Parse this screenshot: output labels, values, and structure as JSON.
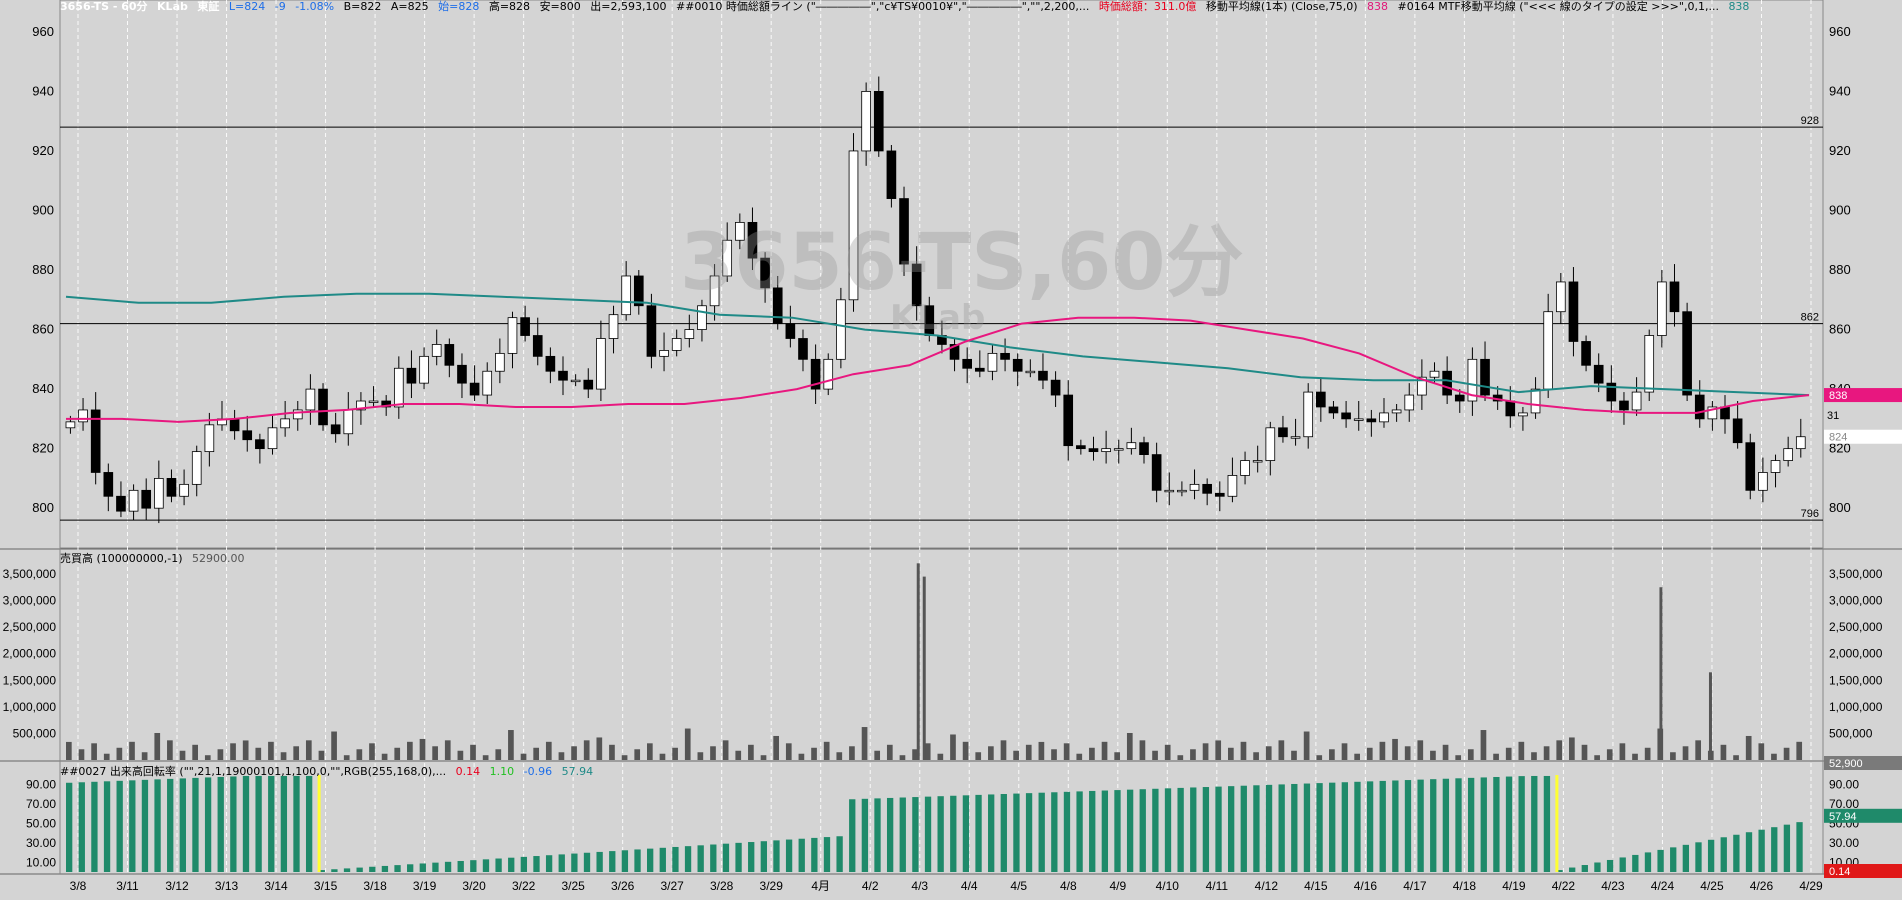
{
  "header": {
    "symbol": "3656-TS - 60分",
    "company": "KLab",
    "market": "東証",
    "last": "L=824",
    "change": "-9",
    "pct": "-1.08%",
    "bid": "B=822",
    "ask": "A=825",
    "open": "始=828",
    "high": "高=828",
    "low": "安=800",
    "volume": "出=2,593,100",
    "ind1": "##0010 時価総額ライン (\"―――――\",\"c¥TS¥0010¥\",\"―――――\",\"\",2,200,...",
    "ind1_value": "時価総額：311.0億",
    "ind2": "移動平均線(1本) (Close,75,0)",
    "ind2_value": "838",
    "ind3": "#0164 MTF移動平均線 (\"<<< 線のタイプの設定 >>>\",0,1,...",
    "ind3_value": "838"
  },
  "watermark": {
    "main": "3656-TS,60分",
    "sub": "KLab"
  },
  "volume_panel": {
    "label": "売買高 (100000000,-1)",
    "value": "52900.00",
    "last_tag": "52,900"
  },
  "turnover_panel": {
    "label": "##0027 出来高回転率 (\"\",21,1,19000101,1,100,0,\"\",RGB(255,168,0),...",
    "v1": "0.14",
    "v2": "1.10",
    "v3": "-0.96",
    "v4": "57.94",
    "tag_top": "57.94",
    "tag_bottom": "0.14"
  },
  "price_tags": {
    "ma": "838",
    "last": "824",
    "hline_top": "928",
    "hline_mid": "862",
    "hline_bot": "796",
    "side_note": "31"
  },
  "colors": {
    "background": "#d4d4d4",
    "ma75": "#e8177f",
    "mtf": "#1f8a87",
    "candle_down": "#000000",
    "candle_up": "#ffffff",
    "volume_bar": "#555555",
    "turnover_bar": "#1f8a6a",
    "highlight": "#ffff33"
  },
  "chart_data": {
    "type": "candlestick",
    "price_axis": {
      "ylim": [
        792,
        966
      ],
      "ticks": [
        800,
        820,
        840,
        860,
        880,
        900,
        920,
        940,
        960
      ]
    },
    "horizontal_lines": [
      928,
      862,
      796
    ],
    "x_labels": [
      "3/8",
      "3/11",
      "3/12",
      "3/13",
      "3/14",
      "3/15",
      "3/18",
      "3/19",
      "3/20",
      "3/22",
      "3/25",
      "3/26",
      "3/27",
      "3/28",
      "3/29",
      "4月",
      "4/2",
      "4/3",
      "4/4",
      "4/5",
      "4/8",
      "4/9",
      "4/10",
      "4/11",
      "4/12",
      "4/15",
      "4/16",
      "4/17",
      "4/18",
      "4/19",
      "4/22",
      "4/23",
      "4/24",
      "4/25",
      "4/26",
      "4/29"
    ],
    "close_path": [
      829,
      833,
      812,
      804,
      799,
      806,
      800,
      810,
      804,
      808,
      819,
      828,
      830,
      826,
      823,
      820,
      827,
      830,
      833,
      840,
      828,
      825,
      833,
      836,
      836,
      834,
      847,
      842,
      851,
      855,
      848,
      842,
      838,
      846,
      852,
      864,
      858,
      851,
      846,
      843,
      843,
      840,
      857,
      865,
      878,
      868,
      851,
      853,
      857,
      860,
      868,
      878,
      890,
      896,
      884,
      874,
      862,
      857,
      850,
      840,
      850,
      870,
      920,
      940,
      920,
      904,
      882,
      868,
      858,
      855,
      850,
      847,
      846,
      852,
      850,
      846,
      846,
      843,
      838,
      821,
      820,
      819,
      820,
      820,
      822,
      818,
      806,
      806,
      806,
      808,
      805,
      804,
      811,
      816,
      816,
      827,
      824,
      824,
      839,
      834,
      832,
      830,
      830,
      829,
      832,
      833,
      838,
      844,
      846,
      838,
      836,
      850,
      838,
      836,
      831,
      832,
      840,
      866,
      876,
      856,
      848,
      842,
      836,
      833,
      839,
      858,
      876,
      866,
      838,
      830,
      834,
      830,
      822,
      806,
      812,
      816,
      820,
      824
    ],
    "ma75": [
      830,
      830,
      829,
      830,
      832,
      833,
      835,
      835,
      834,
      834,
      835,
      835,
      837,
      840,
      845,
      848,
      856,
      862,
      864,
      864,
      863,
      860,
      857,
      852,
      844,
      838,
      835,
      833,
      832,
      832,
      836,
      838
    ],
    "mtf": [
      871,
      869,
      869,
      871,
      872,
      872,
      871,
      870,
      869,
      865,
      864,
      860,
      858,
      854,
      851,
      849,
      847,
      844,
      843,
      843,
      839,
      841,
      840,
      839,
      838
    ],
    "volume_axis": {
      "ticks": [
        500000,
        1000000,
        1500000,
        2000000,
        2500000,
        3000000,
        3500000
      ],
      "labels": [
        "500,000",
        "1,000,000",
        "1,500,000",
        "2,000,000",
        "2,500,000",
        "3,000,000",
        "3,500,000"
      ],
      "ylim": [
        0,
        3800000
      ]
    },
    "volume_spikes": [
      {
        "x_label": "4/3",
        "value": 3700000
      },
      {
        "x_label": "4/3",
        "value": 3450000
      },
      {
        "x_label": "4/24",
        "value": 3250000
      },
      {
        "x_label": "4/25",
        "value": 1650000
      }
    ],
    "turnover_axis": {
      "ticks": [
        10,
        30,
        50,
        70,
        90
      ],
      "labels": [
        "10.00",
        "30.00",
        "50.00",
        "70.00",
        "90.00"
      ],
      "ylim": [
        0,
        100
      ]
    }
  }
}
